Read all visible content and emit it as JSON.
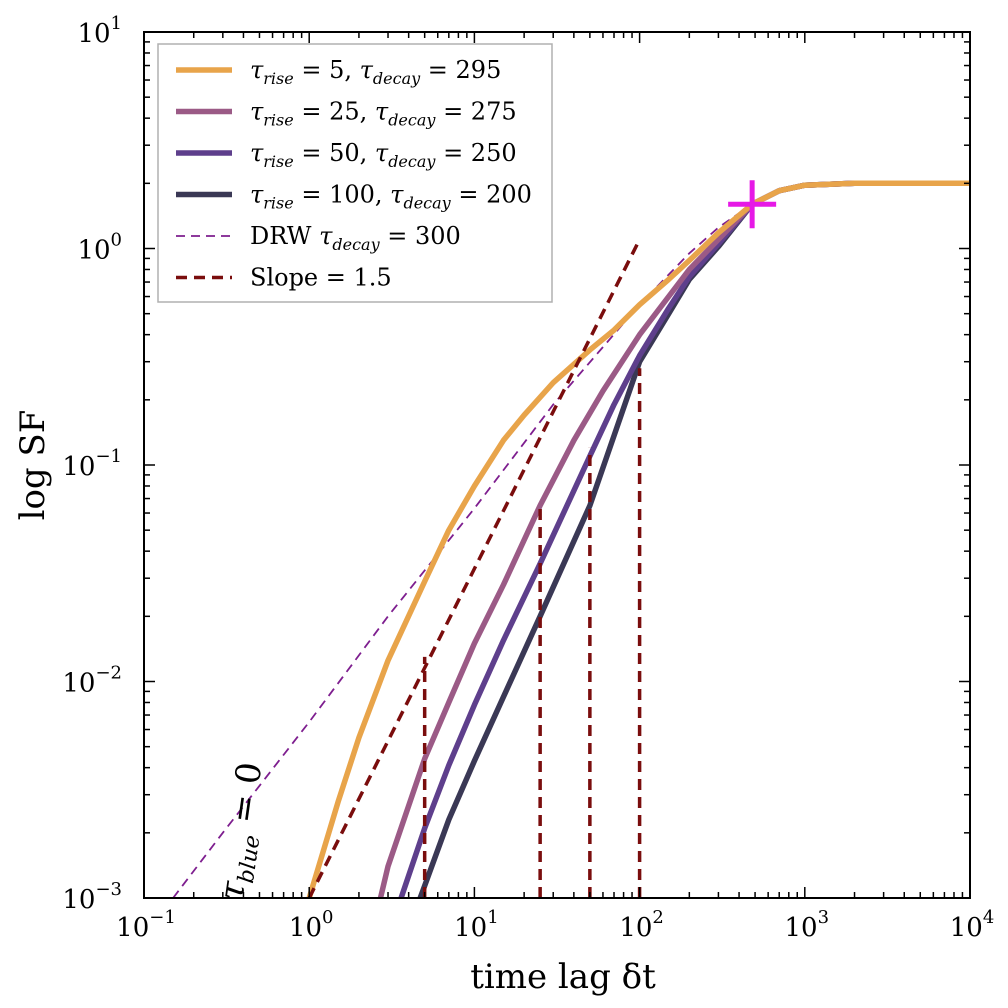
{
  "chart_data": {
    "type": "line",
    "xscale": "log",
    "yscale": "log",
    "xlim": [
      0.1,
      10000
    ],
    "ylim": [
      0.001,
      10
    ],
    "xlabel": "time lag δt",
    "ylabel": "log SF",
    "x_ticks": [
      {
        "value": 0.1,
        "base": "10",
        "exp": "−1"
      },
      {
        "value": 1,
        "base": "10",
        "exp": "0"
      },
      {
        "value": 10,
        "base": "10",
        "exp": "1"
      },
      {
        "value": 100,
        "base": "10",
        "exp": "2"
      },
      {
        "value": 1000,
        "base": "10",
        "exp": "3"
      },
      {
        "value": 10000,
        "base": "10",
        "exp": "4"
      }
    ],
    "y_ticks": [
      {
        "value": 0.001,
        "base": "10",
        "exp": "−3"
      },
      {
        "value": 0.01,
        "base": "10",
        "exp": "−2"
      },
      {
        "value": 0.1,
        "base": "10",
        "exp": "−1"
      },
      {
        "value": 1,
        "base": "10",
        "exp": "0"
      },
      {
        "value": 10,
        "base": "10",
        "exp": "1"
      }
    ],
    "grid": false,
    "legend_position": "top-left",
    "series": [
      {
        "name": "τrise = 5, τdecay = 295",
        "legend": {
          "a": "rise",
          "b": "5, ",
          "c": "decay",
          "d": "295"
        },
        "color": "#E8A44A",
        "style": "solid",
        "x": [
          1,
          1.5,
          2,
          3,
          5,
          7,
          10,
          15,
          20,
          30,
          50,
          70,
          100,
          150,
          200,
          300,
          480,
          700,
          1000,
          2000,
          5000,
          10000
        ],
        "y": [
          0.001,
          0.0028,
          0.0055,
          0.0125,
          0.029,
          0.05,
          0.08,
          0.13,
          0.17,
          0.24,
          0.34,
          0.42,
          0.55,
          0.72,
          0.88,
          1.18,
          1.6,
          1.85,
          1.96,
          2.0,
          2.0,
          2.0
        ]
      },
      {
        "name": "τrise = 25, τdecay = 275",
        "legend": {
          "a": "rise",
          "b": "25, ",
          "c": "decay",
          "d": "275"
        },
        "color": "#9B5A86",
        "style": "solid",
        "x": [
          2.7,
          3,
          5,
          7,
          10,
          15,
          25,
          40,
          60,
          100,
          150,
          200,
          300,
          480,
          700,
          1000,
          2000,
          5000,
          10000
        ],
        "y": [
          0.001,
          0.0014,
          0.0044,
          0.008,
          0.015,
          0.028,
          0.065,
          0.13,
          0.22,
          0.4,
          0.6,
          0.8,
          1.1,
          1.6,
          1.85,
          1.96,
          2.0,
          2.0,
          2.0
        ]
      },
      {
        "name": "τrise = 50, τdecay = 250",
        "legend": {
          "a": "rise",
          "b": "50, ",
          "c": "decay",
          "d": "250"
        },
        "color": "#5E3F8C",
        "style": "solid",
        "x": [
          3.6,
          5,
          7,
          10,
          15,
          25,
          50,
          70,
          100,
          150,
          200,
          300,
          480,
          700,
          1000,
          2000,
          5000,
          10000
        ],
        "y": [
          0.001,
          0.0021,
          0.0041,
          0.0078,
          0.0155,
          0.035,
          0.11,
          0.19,
          0.32,
          0.53,
          0.74,
          1.05,
          1.6,
          1.85,
          1.96,
          2.0,
          2.0,
          2.0
        ]
      },
      {
        "name": "τrise = 100, τdecay = 200",
        "legend": {
          "a": "rise",
          "b": "100, ",
          "c": "decay",
          "d": "200"
        },
        "color": "#3A3855",
        "style": "solid",
        "x": [
          4.7,
          7,
          10,
          15,
          25,
          50,
          100,
          150,
          200,
          300,
          480,
          700,
          1000,
          2000,
          5000,
          10000
        ],
        "y": [
          0.001,
          0.0023,
          0.0043,
          0.0085,
          0.02,
          0.065,
          0.3,
          0.5,
          0.72,
          1.02,
          1.6,
          1.85,
          1.96,
          2.0,
          2.0,
          2.0
        ]
      },
      {
        "name": "DRW τdecay = 300",
        "legend": {
          "a": "DRW ",
          "c": "decay",
          "d": "300"
        },
        "color": "#7E1E8F",
        "style": "dashed-thin",
        "x": [
          0.15,
          0.3,
          1,
          3,
          10,
          30,
          100,
          200,
          300,
          480,
          700,
          1000,
          2000,
          5000,
          10000
        ],
        "y": [
          0.001,
          0.002,
          0.0065,
          0.02,
          0.063,
          0.19,
          0.55,
          0.95,
          1.25,
          1.6,
          1.85,
          1.96,
          2.0,
          2.0,
          2.0
        ]
      },
      {
        "name": "Slope = 1.5",
        "legend": {
          "a": "Slope = 1.5"
        },
        "color": "#7A0D0D",
        "style": "dashed-thick",
        "x": [
          1,
          100
        ],
        "y": [
          0.001,
          1.1
        ]
      }
    ],
    "vertical_markers": [
      {
        "x": 5,
        "y_top": 0.013
      },
      {
        "x": 25,
        "y_top": 0.065
      },
      {
        "x": 50,
        "y_top": 0.12
      },
      {
        "x": 100,
        "y_top": 0.28
      }
    ],
    "marker_point": {
      "x": 480,
      "y": 1.6,
      "symbol": "+",
      "color": "#E619E6"
    },
    "annotation": {
      "text": "τblue = 0",
      "x": 0.45,
      "y": 0.002,
      "rotation": -82
    }
  }
}
